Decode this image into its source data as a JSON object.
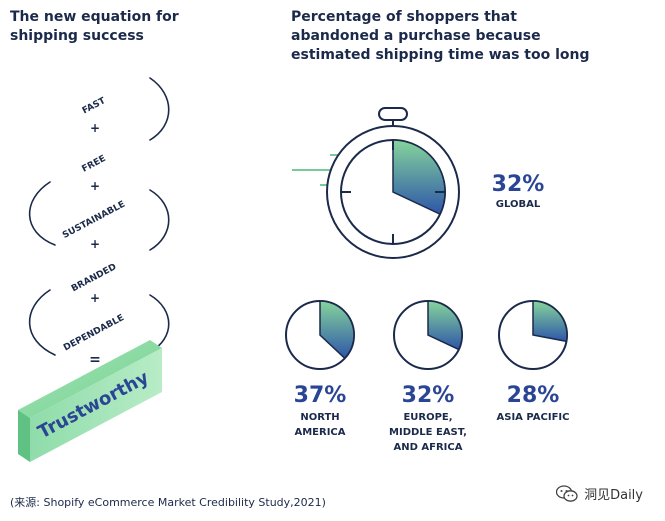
{
  "left_panel": {
    "title_lines": [
      "The new equation for",
      "shipping success"
    ],
    "terms": [
      "FAST",
      "FREE",
      "SUSTAINABLE",
      "BRANDED",
      "DEPENDABLE"
    ],
    "plus": "+",
    "equals": "=",
    "result": "Trustworthy"
  },
  "right_panel": {
    "title_lines": [
      "Percentage of shoppers that",
      "abandoned a purchase because",
      "estimated shipping time was too long"
    ],
    "global": {
      "value_label": "32%",
      "value": 32,
      "region_lines": [
        "GLOBAL"
      ]
    },
    "regions": [
      {
        "value_label": "37%",
        "value": 37,
        "region_lines": [
          "NORTH",
          "AMERICA"
        ]
      },
      {
        "value_label": "32%",
        "value": 32,
        "region_lines": [
          "EUROPE,",
          "MIDDLE EAST,",
          "AND AFRICA"
        ]
      },
      {
        "value_label": "28%",
        "value": 28,
        "region_lines": [
          "ASIA PACIFIC"
        ]
      }
    ]
  },
  "footer": {
    "source": "(来源: Shopify eCommerce Market Credibility Study,2021)",
    "watermark_text": "洞见Daily",
    "watermark_icon": "wechat-icon"
  },
  "colors": {
    "navy": "#1b2a4a",
    "accent_blue": "#2a4594",
    "green": "#4cb87a",
    "gradient_start": "#86d49c",
    "gradient_end": "#2e56a8"
  }
}
